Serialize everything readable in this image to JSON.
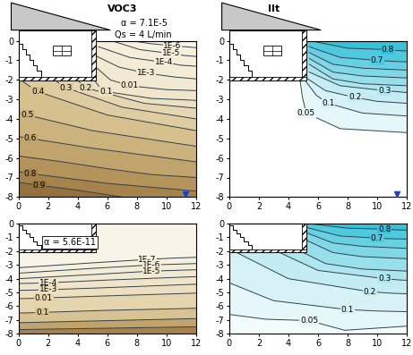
{
  "chart_data": [
    {
      "type": "contour",
      "title": "VOC3",
      "annotations": [
        "α = 7.1E-5",
        "Qs = 4 L/min"
      ],
      "xlim": [
        0,
        12
      ],
      "ylim": [
        -8,
        0
      ],
      "xticks": [
        0,
        2,
        4,
        6,
        8,
        10,
        12
      ],
      "yticks": [
        0,
        -1,
        -2,
        -3,
        -4,
        -5,
        -6,
        -7,
        -8
      ],
      "color": "#f8f4e8",
      "contours": [
        {
          "level": 1e-06,
          "label": "1E-6",
          "color": "#f6f0df",
          "x": [
            7.6,
            9,
            10.4,
            11.2,
            12
          ],
          "y": [
            0,
            -0.15,
            -0.25,
            -0.3,
            -0.35
          ]
        },
        {
          "level": 1e-05,
          "label": "1E-5",
          "color": "#f5eedb",
          "x": [
            6.3,
            8.2,
            10.3,
            11.2,
            12
          ],
          "y": [
            0,
            -0.45,
            -0.65,
            -0.75,
            -0.8
          ]
        },
        {
          "level": 0.0001,
          "label": "1E-4",
          "color": "#f4ecd7",
          "x": [
            5.4,
            7.5,
            9.8,
            11,
            12
          ],
          "y": [
            -0.3,
            -0.85,
            -1.1,
            -1.25,
            -1.3
          ]
        },
        {
          "level": 0.001,
          "label": "1E-3",
          "color": "#f2e9d2",
          "x": [
            5.3,
            6.8,
            8.6,
            10.5,
            12
          ],
          "y": [
            -0.8,
            -1.35,
            -1.65,
            -1.85,
            -1.95
          ]
        },
        {
          "level": 0.01,
          "label": "0.01",
          "color": "#f0e6cc",
          "x": [
            5.3,
            6.2,
            7.5,
            10,
            12
          ],
          "y": [
            -1.4,
            -2.0,
            -2.3,
            -2.5,
            -2.55
          ]
        },
        {
          "level": 0.1,
          "label": "0.1",
          "color": "#ede1c3",
          "x": [
            5.2,
            5.5,
            5.9,
            9,
            12
          ],
          "y": [
            -2.1,
            -2.4,
            -2.6,
            -2.95,
            -3.05
          ]
        },
        {
          "level": 0.2,
          "label": "0.2",
          "color": "#e6d7b2",
          "x": [
            4.1,
            4.3,
            4.5,
            8.5,
            12
          ],
          "y": [
            -2.1,
            -2.25,
            -2.4,
            -3.2,
            -3.45
          ]
        },
        {
          "level": 0.3,
          "label": "0.3",
          "color": "#dfcca0",
          "x": [
            2.6,
            2.9,
            3.2,
            7,
            12
          ],
          "y": [
            -2.1,
            -2.25,
            -2.4,
            -3.4,
            -4.0
          ]
        },
        {
          "level": 0.4,
          "label": "0.4",
          "color": "#d6c08e",
          "x": [
            0.3,
            0.8,
            1.3,
            6,
            12
          ],
          "y": [
            -2.1,
            -2.35,
            -2.6,
            -3.8,
            -4.6
          ]
        },
        {
          "level": 0.5,
          "label": "0.5",
          "color": "#ccb27c",
          "x": [
            0,
            0.3,
            0.6,
            5,
            12
          ],
          "y": [
            -3.7,
            -3.75,
            -3.8,
            -4.6,
            -5.4
          ]
        },
        {
          "level": 0.6,
          "label": "0.6",
          "color": "#c1a46b",
          "x": [
            0,
            0.4,
            0.8,
            5,
            12
          ],
          "y": [
            -4.9,
            -4.95,
            -5.0,
            -5.5,
            -6.2
          ]
        },
        {
          "level": 0.7,
          "color": "#b4945a",
          "x": [
            0,
            3,
            6,
            9,
            12
          ],
          "y": [
            -5.9,
            -6.2,
            -6.55,
            -6.85,
            -7.0
          ]
        },
        {
          "level": 0.8,
          "label": "0.8",
          "color": "#a5834b",
          "x": [
            0,
            0.4,
            0.8,
            6,
            12
          ],
          "y": [
            -6.7,
            -6.75,
            -6.8,
            -7.3,
            -7.7
          ]
        },
        {
          "level": 0.9,
          "label": "0.9",
          "color": "#93723e",
          "x": [
            0,
            0.7,
            1.4,
            4,
            7
          ],
          "y": [
            -7.25,
            -7.32,
            -7.4,
            -7.65,
            -8.0
          ]
        }
      ]
    },
    {
      "type": "contour",
      "title": "IIt",
      "xlim": [
        0,
        12
      ],
      "ylim": [
        -8,
        0
      ],
      "xticks": [
        0,
        2,
        4,
        6,
        8,
        10,
        12
      ],
      "yticks": [
        0,
        -1,
        -2,
        -3,
        -4,
        -5,
        -6,
        -7,
        -8
      ],
      "color": "#ffffff",
      "contours": [
        {
          "level": 0.05,
          "label": "0.05",
          "color": "#e6f7fa",
          "x": [
            4.8,
            4.95,
            5.2,
            7.5,
            12
          ],
          "y": [
            -2.1,
            -2.9,
            -3.7,
            -4.5,
            -4.7
          ]
        },
        {
          "level": 0.1,
          "label": "0.1",
          "color": "#d6f2f7",
          "x": [
            5.2,
            5.9,
            6.7,
            9,
            12
          ],
          "y": [
            -2.1,
            -2.8,
            -3.2,
            -3.7,
            -3.85
          ]
        },
        {
          "level": 0.2,
          "label": "0.2",
          "color": "#c4ecf3",
          "x": [
            5.3,
            6.5,
            8.5,
            10,
            12
          ],
          "y": [
            -1.95,
            -2.55,
            -2.9,
            -3.1,
            -3.2
          ]
        },
        {
          "level": 0.3,
          "label": "0.3",
          "color": "#aee5ef",
          "x": [
            5.4,
            7.5,
            10.5,
            11.3,
            12
          ],
          "y": [
            -1.6,
            -2.3,
            -2.55,
            -2.6,
            -2.65
          ]
        },
        {
          "level": 0.4,
          "color": "#97dfeb",
          "x": [
            5.4,
            7,
            9,
            12
          ],
          "y": [
            -1.2,
            -1.95,
            -2.2,
            -2.3
          ]
        },
        {
          "level": 0.5,
          "color": "#80d8e7",
          "x": [
            5.4,
            7,
            9,
            12
          ],
          "y": [
            -0.9,
            -1.6,
            -1.8,
            -1.9
          ]
        },
        {
          "level": 0.6,
          "color": "#67d1e3",
          "x": [
            5.4,
            7,
            9,
            12
          ],
          "y": [
            -0.6,
            -1.2,
            -1.4,
            -1.5
          ]
        },
        {
          "level": 0.7,
          "label": "0.7",
          "color": "#4ecadf",
          "x": [
            5.4,
            7.5,
            10,
            11,
            12
          ],
          "y": [
            -0.3,
            -0.85,
            -1.0,
            -1.05,
            -1.08
          ]
        },
        {
          "level": 0.8,
          "label": "0.8",
          "color": "#34c3da",
          "x": [
            5.5,
            8,
            10.7,
            11.4,
            12
          ],
          "y": [
            0,
            -0.38,
            -0.45,
            -0.5,
            -0.52
          ]
        }
      ]
    },
    {
      "type": "contour",
      "annotations": [
        "α = 5.6E-11"
      ],
      "xlim": [
        0,
        12
      ],
      "ylim": [
        -8,
        0
      ],
      "xticks": [
        0,
        2,
        4,
        6,
        8,
        10,
        12
      ],
      "yticks": [
        0,
        -1,
        -2,
        -3,
        -4,
        -5,
        -6,
        -7,
        -8
      ],
      "color": "#f8f4e8",
      "contours": [
        {
          "level": 1e-07,
          "label": "1E-7",
          "color": "#f6f0df",
          "x": [
            0,
            5,
            8.7,
            10.5,
            12
          ],
          "y": [
            -3.2,
            -2.85,
            -2.6,
            -2.5,
            -2.45
          ]
        },
        {
          "level": 1e-06,
          "label": "1E-6",
          "color": "#f4ecd7",
          "x": [
            0,
            5,
            9,
            10.5,
            12
          ],
          "y": [
            -3.6,
            -3.25,
            -3.0,
            -2.95,
            -2.9
          ]
        },
        {
          "level": 1e-05,
          "label": "1E-5",
          "color": "#f2e9d2",
          "x": [
            0,
            5,
            9,
            10.5,
            12
          ],
          "y": [
            -4.0,
            -3.7,
            -3.45,
            -3.4,
            -3.35
          ]
        },
        {
          "level": 0.0001,
          "label": "1E-4",
          "color": "#f0e5cb",
          "x": [
            0,
            1,
            2,
            6,
            12
          ],
          "y": [
            -4.35,
            -4.33,
            -4.3,
            -4.1,
            -3.85
          ]
        },
        {
          "level": 0.001,
          "label": "1E-3",
          "color": "#ede0c1",
          "x": [
            0,
            1,
            2,
            6,
            12
          ],
          "y": [
            -4.85,
            -4.83,
            -4.8,
            -4.65,
            -4.4
          ]
        },
        {
          "level": 0.01,
          "label": "0.01",
          "color": "#e6d6b0",
          "x": [
            0,
            0.9,
            1.7,
            6,
            12
          ],
          "y": [
            -5.45,
            -5.43,
            -5.4,
            -5.25,
            -5.05
          ]
        },
        {
          "level": 0.1,
          "label": "0.1",
          "color": "#d8c394",
          "x": [
            0,
            0.8,
            1.6,
            6,
            12
          ],
          "y": [
            -6.5,
            -6.48,
            -6.45,
            -6.3,
            -6.15
          ]
        },
        {
          "level": 0.3,
          "color": "#c1a46b",
          "x": [
            0,
            6,
            12
          ],
          "y": [
            -7.2,
            -7.05,
            -6.9
          ]
        },
        {
          "level": 0.6,
          "color": "#a5834b",
          "x": [
            0,
            6,
            12
          ],
          "y": [
            -7.7,
            -7.6,
            -7.5
          ]
        }
      ]
    },
    {
      "type": "contour",
      "xlim": [
        0,
        12
      ],
      "ylim": [
        -8,
        0
      ],
      "xticks": [
        0,
        2,
        4,
        6,
        8,
        10,
        12
      ],
      "yticks": [
        0,
        -1,
        -2,
        -3,
        -4,
        -5,
        -6,
        -7,
        -8
      ],
      "color": "#f3fbfd",
      "contours": [
        {
          "level": 0.05,
          "label": "0.05",
          "color": "#e6f7fa",
          "x": [
            0,
            2.5,
            5.4,
            7.8,
            12
          ],
          "y": [
            -6.6,
            -6.95,
            -7.05,
            -7.75,
            -7.45
          ]
        },
        {
          "level": 0.1,
          "label": "0.1",
          "color": "#d6f2f7",
          "x": [
            0,
            3,
            8,
            10,
            12
          ],
          "y": [
            -4.3,
            -5.6,
            -6.25,
            -6.35,
            -6.4
          ]
        },
        {
          "level": 0.2,
          "label": "0.2",
          "color": "#c4ecf3",
          "x": [
            0.5,
            4,
            9.5,
            10.8,
            12
          ],
          "y": [
            -2.1,
            -4.0,
            -4.95,
            -5.05,
            -5.1
          ]
        },
        {
          "level": 0.3,
          "label": "0.3",
          "color": "#aee5ef",
          "x": [
            3.4,
            6,
            10.5,
            11.3,
            12
          ],
          "y": [
            -2.1,
            -3.4,
            -4.0,
            -4.08,
            -4.12
          ]
        },
        {
          "level": 0.4,
          "color": "#97dfeb",
          "x": [
            5.0,
            6.5,
            9,
            12
          ],
          "y": [
            -2.1,
            -2.9,
            -3.3,
            -3.45
          ]
        },
        {
          "level": 0.5,
          "color": "#80d8e7",
          "x": [
            5.2,
            7,
            9,
            12
          ],
          "y": [
            -1.2,
            -2.1,
            -2.4,
            -2.55
          ]
        },
        {
          "level": 0.6,
          "color": "#67d1e3",
          "x": [
            5.3,
            7,
            9,
            12
          ],
          "y": [
            -0.7,
            -1.4,
            -1.65,
            -1.8
          ]
        },
        {
          "level": 0.7,
          "label": "0.7",
          "color": "#4ecadf",
          "x": [
            5.3,
            7.5,
            10,
            11,
            12
          ],
          "y": [
            -0.3,
            -0.9,
            -1.05,
            -1.1,
            -1.12
          ]
        },
        {
          "level": 0.8,
          "label": "0.8",
          "color": "#34c3da",
          "x": [
            5.4,
            8,
            10.5,
            11.3,
            12
          ],
          "y": [
            0,
            -0.33,
            -0.4,
            -0.45,
            -0.47
          ]
        }
      ]
    }
  ]
}
